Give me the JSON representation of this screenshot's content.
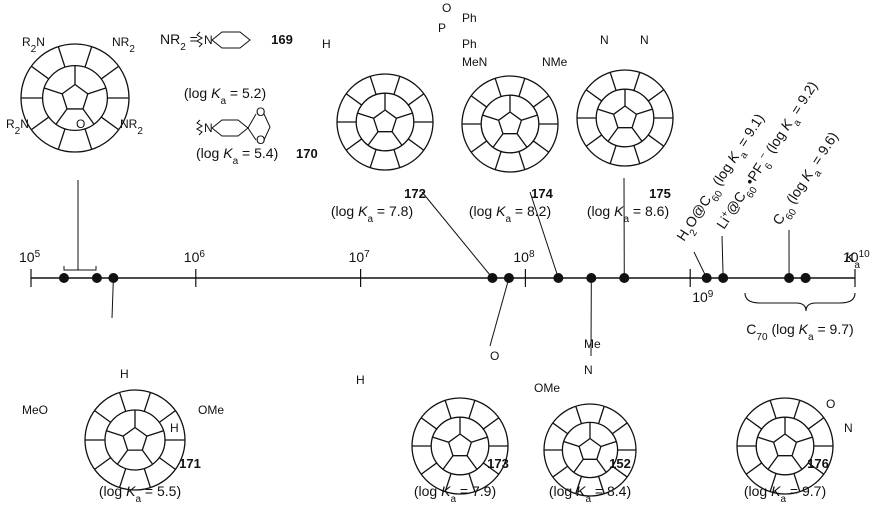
{
  "ka": {
    "letter": "K",
    "subscript": "a"
  },
  "caption": {
    "open": "(log ",
    "equals": " = ",
    "close": ")"
  },
  "axis": {
    "ticks": [
      {
        "base": "10",
        "exponent": 5
      },
      {
        "base": "10",
        "exponent": 6
      },
      {
        "base": "10",
        "exponent": 7
      },
      {
        "base": "10",
        "exponent": 8
      },
      {
        "base": "10",
        "exponent": 9
      },
      {
        "base": "10",
        "exponent": 10
      }
    ]
  },
  "compounds": [
    {
      "label": "169",
      "log_ka": 5.2
    },
    {
      "label": "170",
      "log_ka": 5.4
    },
    {
      "label": "171",
      "log_ka": 5.5
    },
    {
      "label": "172",
      "log_ka": 7.8
    },
    {
      "label": "173",
      "log_ka": 7.9
    },
    {
      "label": "174",
      "log_ka": 8.2
    },
    {
      "label": "152",
      "log_ka": 8.4
    },
    {
      "label": "175",
      "log_ka": 8.6
    },
    {
      "name": [
        [
          "H"
        ],
        [
          "2",
          "sub"
        ],
        [
          "O@C"
        ],
        [
          "60",
          "sub"
        ]
      ],
      "log_ka": 9.1
    },
    {
      "name": [
        [
          "Li"
        ],
        [
          "+",
          "sup"
        ],
        [
          "@C"
        ],
        [
          "60",
          "sub"
        ],
        [
          "•PF"
        ],
        [
          "6",
          "sub"
        ],
        [
          "−",
          "sup"
        ]
      ],
      "log_ka": 9.2
    },
    {
      "name": [
        [
          "C"
        ],
        [
          "60",
          "sub"
        ]
      ],
      "log_ka": 9.6
    },
    {
      "name": [
        [
          "C"
        ],
        [
          "70",
          "sub"
        ]
      ],
      "log_ka": 9.7
    },
    {
      "label": "176",
      "log_ka": 9.7
    }
  ],
  "nr2": [
    [
      "NR"
    ],
    [
      "2",
      "sub"
    ],
    [
      " ="
    ]
  ],
  "structure_labels": [
    [
      [
        "R"
      ],
      [
        "2",
        "sub"
      ],
      [
        "N"
      ]
    ],
    [
      [
        "NR"
      ],
      [
        "2",
        "sub"
      ]
    ],
    [
      [
        "R"
      ],
      [
        "2",
        "sub"
      ],
      [
        "N"
      ]
    ],
    [
      [
        "NR"
      ],
      [
        "2",
        "sub"
      ]
    ],
    [
      [
        "O"
      ]
    ],
    [
      [
        "N"
      ]
    ],
    [
      [
        "N"
      ]
    ],
    [
      [
        "O"
      ]
    ],
    [
      [
        "O"
      ]
    ],
    [
      [
        "H"
      ]
    ],
    [
      [
        "P"
      ]
    ],
    [
      [
        "O"
      ]
    ],
    [
      [
        "Ph"
      ]
    ],
    [
      [
        "Ph"
      ]
    ],
    [
      [
        "MeN"
      ]
    ],
    [
      [
        "NMe"
      ]
    ],
    [
      [
        "N"
      ]
    ],
    [
      [
        "N"
      ]
    ],
    [
      [
        "MeO"
      ]
    ],
    [
      [
        "OMe"
      ]
    ],
    [
      [
        "H"
      ]
    ],
    [
      [
        "H"
      ]
    ],
    [
      [
        "H"
      ]
    ],
    [
      [
        "O"
      ]
    ],
    [
      [
        "OMe"
      ]
    ],
    [
      [
        "Me"
      ]
    ],
    [
      [
        "N"
      ]
    ],
    [
      [
        "O"
      ]
    ],
    [
      [
        "N"
      ]
    ]
  ]
}
